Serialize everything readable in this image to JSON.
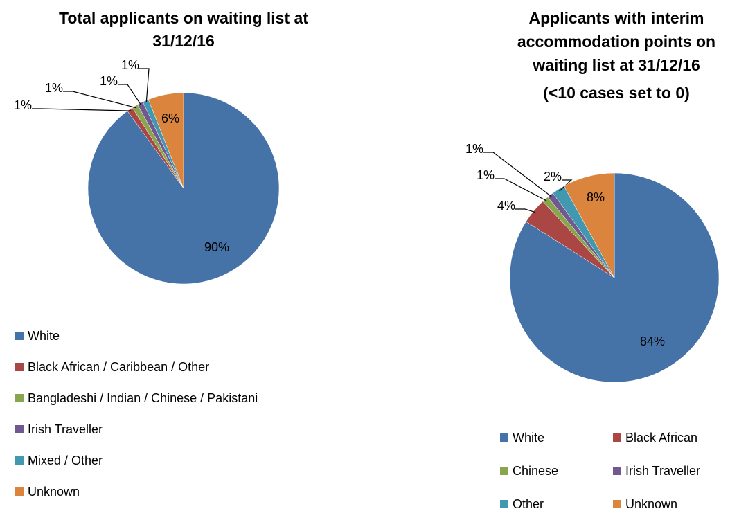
{
  "chart_data": [
    {
      "type": "pie",
      "title": [
        "Total applicants on waiting list at",
        "31/12/16"
      ],
      "categories": [
        "White",
        "Black African / Caribbean / Other",
        "Bangladeshi / Indian  / Chinese / Pakistani",
        "Irish Traveller",
        "Mixed / Other",
        "Unknown"
      ],
      "values": [
        90,
        1,
        1,
        1,
        1,
        6
      ],
      "value_labels": [
        "90%",
        "1%",
        "1%",
        "1%",
        "1%",
        "6%"
      ],
      "colors": [
        "#4572a7",
        "#aa4643",
        "#89a54e",
        "#71588f",
        "#4198af",
        "#db843d"
      ],
      "legend": "bottom"
    },
    {
      "type": "pie",
      "title": [
        "Applicants with interim",
        "accommodation points on",
        "waiting list at 31/12/16",
        "(<10 cases set to 0)"
      ],
      "categories": [
        "White",
        "Black African",
        "Chinese",
        "Irish Traveller",
        "Other",
        "Unknown"
      ],
      "values": [
        84,
        4,
        1,
        1,
        2,
        8
      ],
      "value_labels": [
        "84%",
        "4%",
        "1%",
        "1%",
        "2%",
        "8%"
      ],
      "colors": [
        "#4572a7",
        "#aa4643",
        "#89a54e",
        "#71588f",
        "#4198af",
        "#db843d"
      ],
      "legend": "bottom"
    }
  ]
}
